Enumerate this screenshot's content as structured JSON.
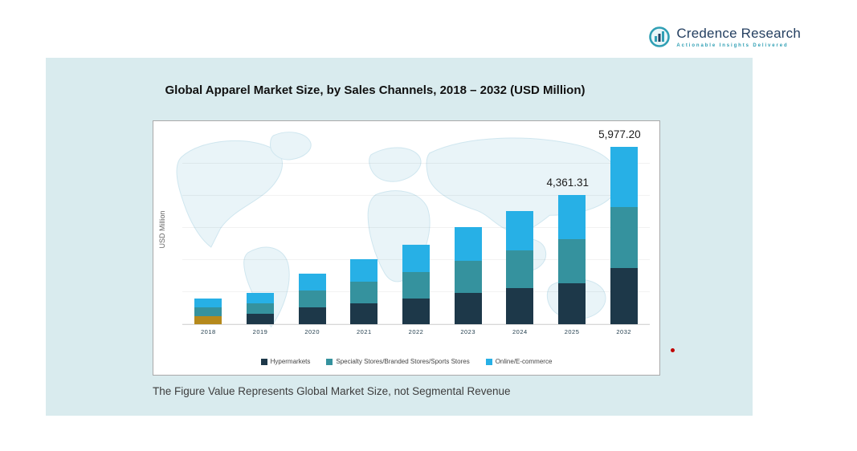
{
  "logo": {
    "name": "Credence Research",
    "tagline": "Actionable Insights Delivered"
  },
  "title": "Global Apparel Market Size, by Sales Channels, 2018 – 2032 (USD Million)",
  "footnote": "The Figure Value Represents Global Market Size, not Segmental Revenue",
  "colors": {
    "panel_background": "#d9ebee",
    "hypermarkets": "#1d3849",
    "specialty_stores": "#35929e",
    "online_ecommerce": "#27b0e6",
    "first_bar_bottom_gold": "#b5891c",
    "annotation_dot": "#c00000",
    "logo_navy": "#254061",
    "logo_teal": "#2f9fb4"
  },
  "chart_data": {
    "type": "bar",
    "stacked": true,
    "title": "Global Apparel Market Size, by Sales Channels, 2018 – 2032 (USD Million)",
    "xlabel": "",
    "ylabel": "USD Million",
    "ylim": [
      0,
      6500
    ],
    "grid": "horizontal",
    "legend_position": "bottom",
    "categories": [
      "2018",
      "2019",
      "2020",
      "2021",
      "2022",
      "2023",
      "2024",
      "2025",
      "2032"
    ],
    "series": [
      {
        "name": "Hypermarkets",
        "color": "#1d3849",
        "color_overrides": {
          "2018": "#b5891c"
        },
        "values": [
          280,
          340,
          560,
          700,
          870,
          1050,
          1220,
          1380,
          1900
        ]
      },
      {
        "name": "Specialty Stores/Branded Stores/Sports Stores",
        "color": "#35929e",
        "values": [
          280,
          360,
          570,
          730,
          900,
          1100,
          1280,
          1500,
          2050
        ]
      },
      {
        "name": "Online/E-commerce",
        "color": "#27b0e6",
        "values": [
          300,
          360,
          570,
          760,
          920,
          1130,
          1320,
          1481.31,
          2027.2
        ]
      }
    ],
    "totals_labeled": {
      "2025": "4,361.31",
      "2032": "5,977.20"
    },
    "annotations": [
      {
        "category": "2025",
        "label": "4,361.31"
      },
      {
        "category": "2032",
        "label": "5,977.20"
      }
    ]
  }
}
